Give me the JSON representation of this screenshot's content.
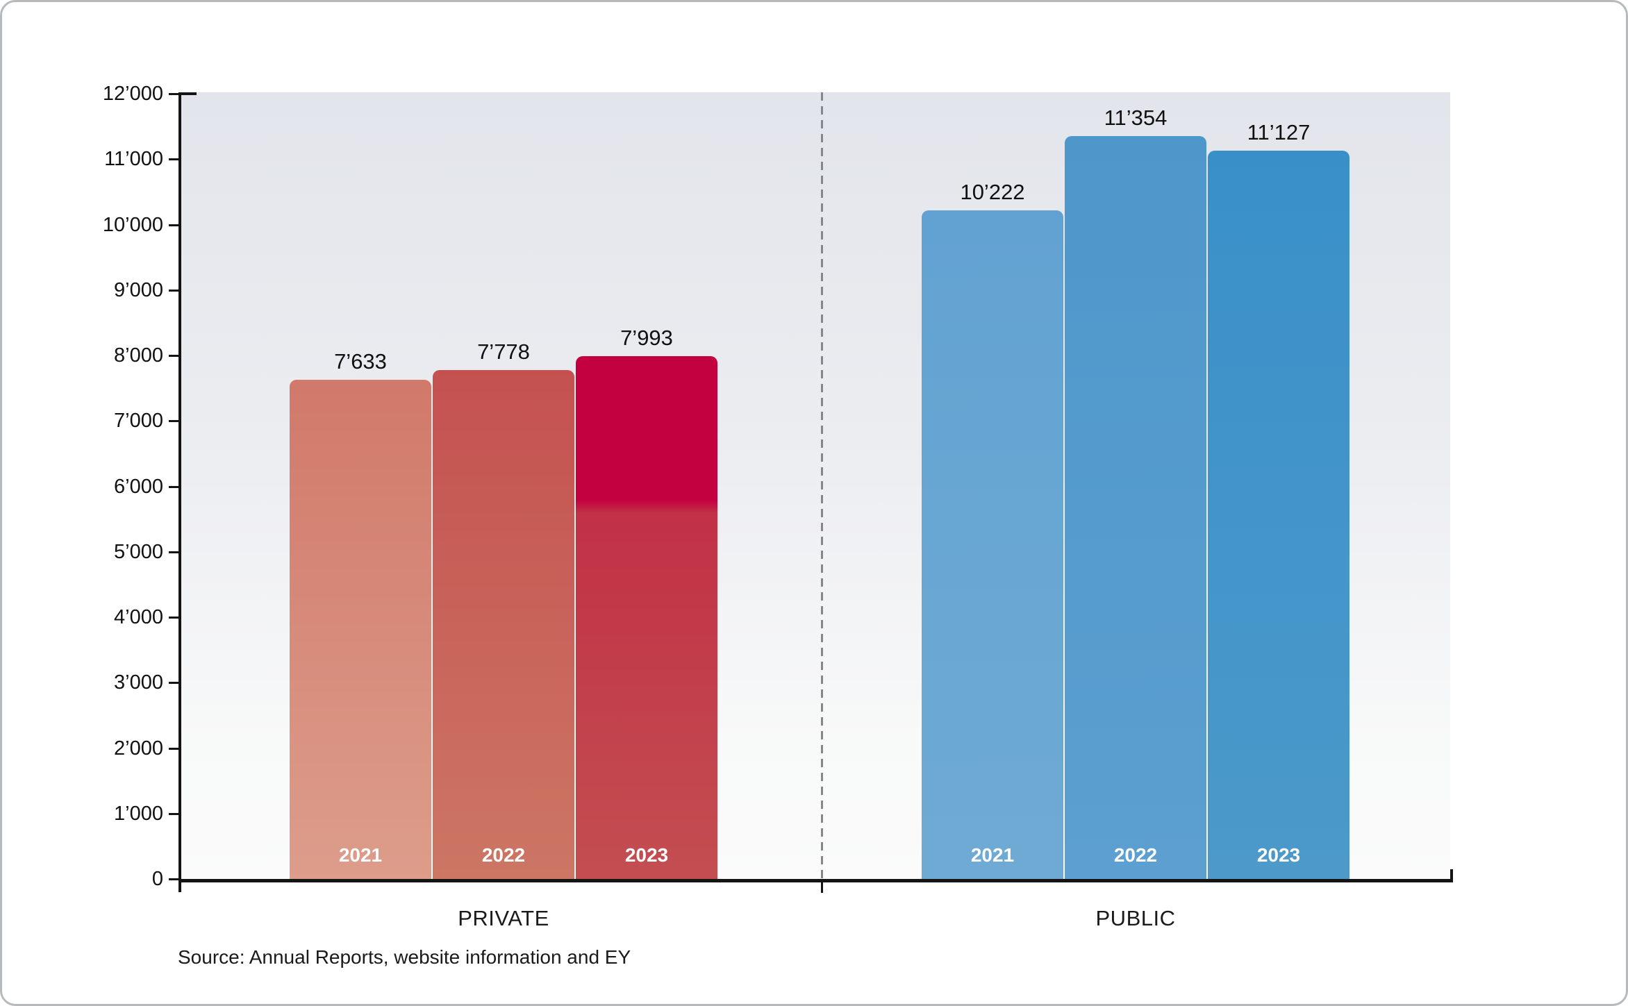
{
  "chart_data": {
    "type": "bar",
    "title": "",
    "ylim": [
      0,
      12000
    ],
    "ytick_step": 1000,
    "ytick_labels": [
      "0",
      "1’000",
      "2’000",
      "3’000",
      "4’000",
      "5’000",
      "6’000",
      "7’000",
      "8’000",
      "9’000",
      "10’000",
      "11’000",
      "12’000"
    ],
    "grid": false,
    "legend": "none",
    "categories": [
      "2021",
      "2022",
      "2023"
    ],
    "groups": [
      {
        "label": "PRIVATE",
        "series_color": "red",
        "bars": [
          {
            "category": "2021",
            "value": 7633,
            "value_label": "7’633",
            "gradient": [
              "#d1796a 0%",
              "#dd9d8b 100%"
            ]
          },
          {
            "category": "2022",
            "value": 7778,
            "value_label": "7’778",
            "gradient": [
              "#c45150 0%",
              "#cd7664 100%"
            ]
          },
          {
            "category": "2023",
            "value": 7993,
            "value_label": "7’993",
            "gradient": [
              "#c30040 0%",
              "#c30040 27.5%",
              "#c23146 30%",
              "#c34e51 100%"
            ]
          }
        ]
      },
      {
        "label": "PUBLIC",
        "series_color": "blue",
        "bars": [
          {
            "category": "2021",
            "value": 10222,
            "value_label": "10’222",
            "gradient": [
              "#62a2d2 0%",
              "#6faad4 100%"
            ]
          },
          {
            "category": "2022",
            "value": 11354,
            "value_label": "11’354",
            "gradient": [
              "#4e97cb 0%",
              "#5c9fd0 100%"
            ]
          },
          {
            "category": "2023",
            "value": 11127,
            "value_label": "11’127",
            "gradient": [
              "#3990c9 0%",
              "#4c99ca 100%"
            ]
          }
        ]
      }
    ],
    "separator": {
      "style": "dashed",
      "color": "#85868a"
    },
    "axis_color": "#141414",
    "plot_bg_gradient": [
      "#e2e5eb 0%",
      "#ecedf1 45%",
      "#f8f9f9 82%",
      "#fbfbfb 100%"
    ],
    "source_note": "Source: Annual Reports, website information and EY"
  }
}
